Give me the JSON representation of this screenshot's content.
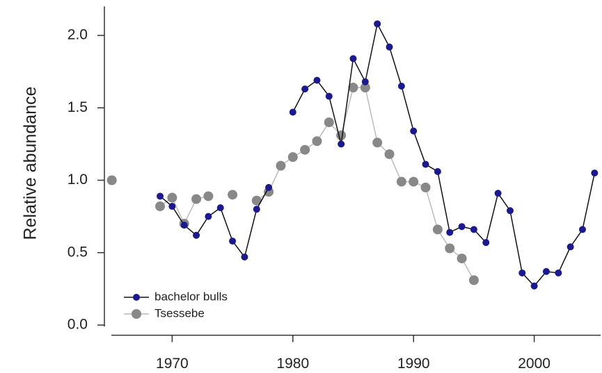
{
  "chart_data": {
    "type": "line",
    "ylabel": "Relative abundance",
    "x": [
      1965,
      1966,
      1967,
      1968,
      1969,
      1970,
      1971,
      1972,
      1973,
      1974,
      1975,
      1976,
      1977,
      1978,
      1979,
      1980,
      1981,
      1982,
      1983,
      1984,
      1985,
      1986,
      1987,
      1988,
      1989,
      1990,
      1991,
      1992,
      1993,
      1994,
      1995,
      1996,
      1997,
      1998,
      1999,
      2000,
      2001,
      2002,
      2003,
      2004,
      2005
    ],
    "series": [
      {
        "name": "bachelor bulls",
        "color": "#1a1a8c",
        "line_color": "#111111",
        "values": [
          null,
          null,
          null,
          null,
          0.89,
          0.82,
          0.69,
          0.62,
          0.75,
          0.81,
          0.58,
          0.47,
          0.8,
          0.95,
          null,
          1.47,
          1.63,
          1.69,
          1.58,
          1.25,
          1.84,
          1.68,
          2.08,
          1.92,
          1.65,
          1.34,
          1.11,
          1.06,
          0.64,
          0.68,
          0.66,
          0.57,
          0.91,
          0.79,
          0.36,
          0.27,
          0.37,
          0.36,
          0.54,
          0.66,
          1.05
        ]
      },
      {
        "name": "Tsessebe",
        "color": "#888888",
        "line_color": "#bbbbbb",
        "values": [
          1.0,
          null,
          null,
          null,
          0.82,
          0.88,
          0.7,
          0.87,
          0.89,
          null,
          0.9,
          null,
          0.86,
          0.92,
          1.1,
          1.16,
          1.21,
          1.27,
          1.4,
          1.31,
          1.64,
          1.64,
          1.26,
          1.18,
          0.99,
          0.99,
          0.95,
          0.66,
          0.53,
          0.46,
          0.31,
          null,
          null,
          null,
          null,
          null,
          null,
          null,
          null,
          null,
          null
        ]
      }
    ],
    "xlim": [
      1964.5,
      2005.5
    ],
    "ylim": [
      -0.07,
      2.2
    ],
    "xticks": [
      1970,
      1980,
      1990,
      2000
    ],
    "yticks": [
      {
        "value": 0,
        "label": "0.0"
      },
      0.5,
      {
        "value": 1,
        "label": "1.0"
      },
      1.5,
      {
        "value": 2,
        "label": "2.0"
      }
    ],
    "legend": "lower left"
  }
}
